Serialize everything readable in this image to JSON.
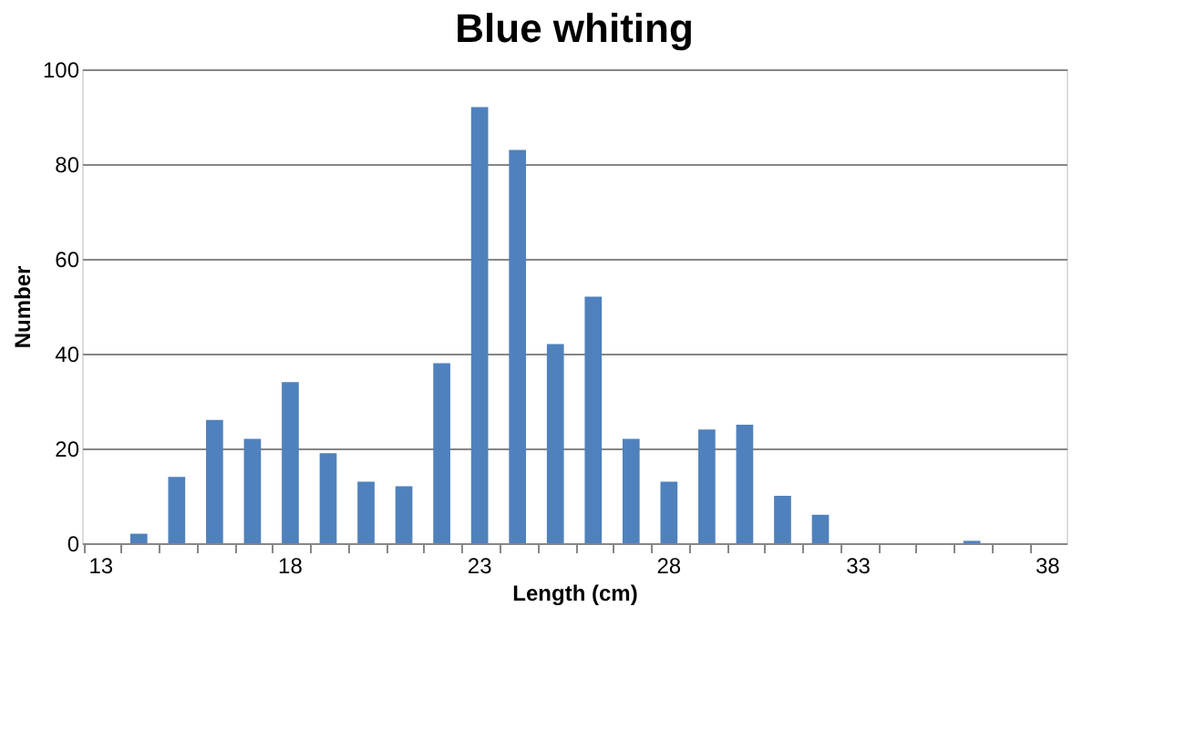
{
  "chart_data": {
    "type": "bar",
    "title": "Blue whiting",
    "xlabel": "Length (cm)",
    "ylabel": "Number",
    "categories": [
      "13",
      null,
      null,
      null,
      null,
      "18",
      null,
      null,
      null,
      null,
      "23",
      null,
      null,
      null,
      null,
      "28",
      null,
      null,
      null,
      null,
      "33",
      null,
      null,
      null,
      null,
      "38"
    ],
    "values": [
      0,
      2,
      14,
      26,
      22,
      34,
      19,
      13,
      12,
      38,
      92,
      83,
      42,
      52,
      22,
      13,
      24,
      25,
      10,
      6,
      0,
      0,
      0,
      0.5,
      0,
      0
    ],
    "color": "#4f81bd",
    "ylim": [
      0,
      100
    ],
    "yticks": [
      0,
      20,
      40,
      60,
      80,
      100
    ],
    "grid": "y"
  }
}
